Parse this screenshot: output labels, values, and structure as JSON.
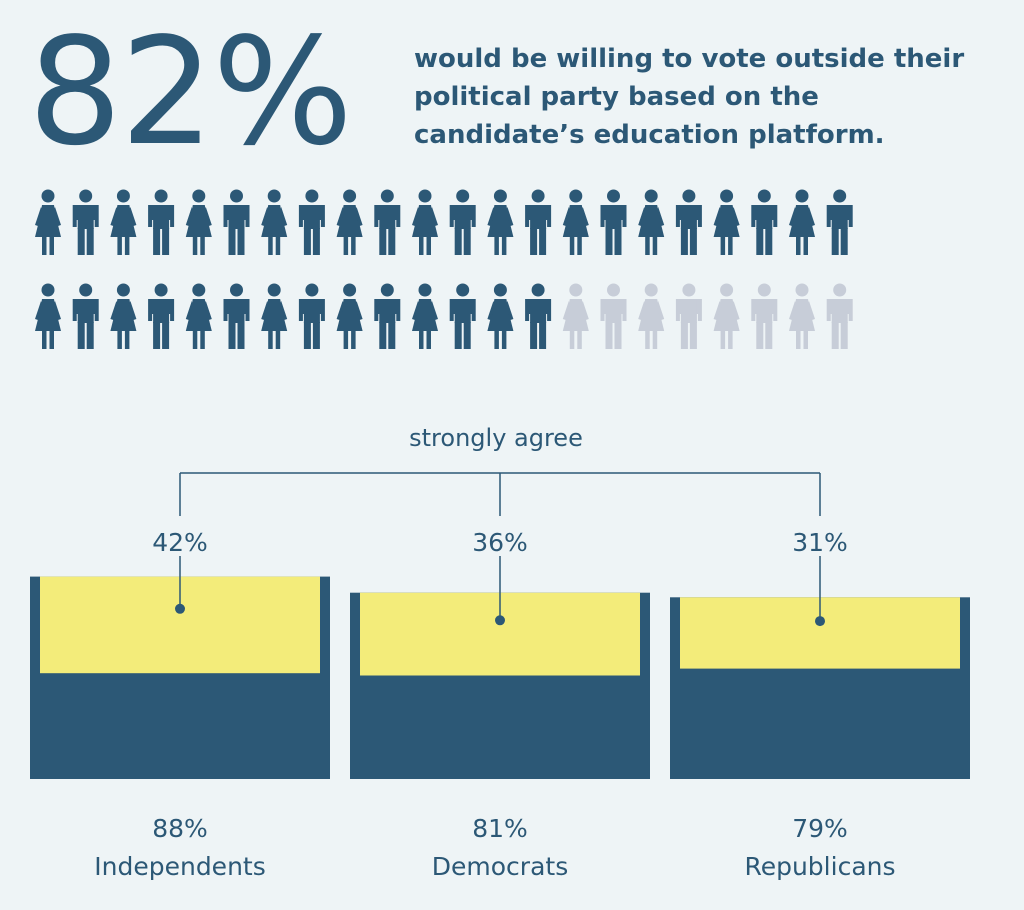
{
  "headline": {
    "percent": "82%",
    "text": "would be willing to vote outside their political party based on the candidate’s education platform."
  },
  "pictograph": {
    "total": 44,
    "filled": 36,
    "fill_color": "#2c5876",
    "empty_color": "#c7cdd8",
    "icon": "person-icon"
  },
  "chart_data": {
    "type": "bar",
    "categories": [
      "Independents",
      "Democrats",
      "Republicans"
    ],
    "series": [
      {
        "values": [
          88,
          81,
          79
        ],
        "labels": [
          "88%",
          "81%",
          "79%"
        ],
        "color": "#2c5876"
      },
      {
        "name": "strongly agree",
        "values": [
          42,
          36,
          31
        ],
        "labels": [
          "42%",
          "36%",
          "31%"
        ],
        "color": "#f3ec7a"
      }
    ],
    "annotation": "strongly agree",
    "ylim": [
      0,
      100
    ],
    "grid": false
  }
}
